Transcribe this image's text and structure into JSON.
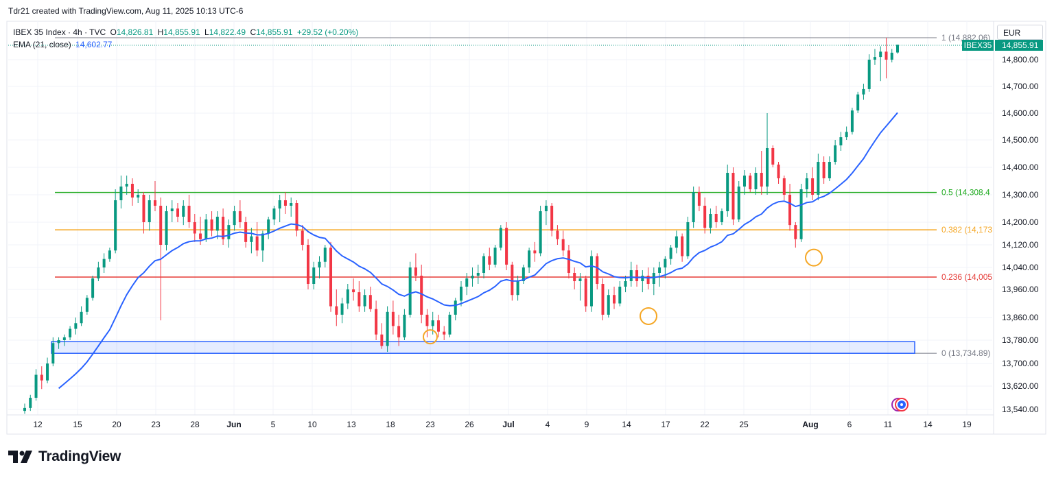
{
  "header": {
    "credit": "Tdr21 created with TradingView.com, Aug 11, 2025 10:13 UTC-6"
  },
  "legend": {
    "instrument": "IBEX 35 Index · 4h · TVC",
    "o_label": "O",
    "o_value": "14,826.81",
    "h_label": "H",
    "h_value": "14,855.91",
    "l_label": "L",
    "l_value": "14,822.49",
    "c_label": "C",
    "c_value": "14,855.91",
    "change": "+29.52 (+0.20%)",
    "ema_label": "EMA (21, close)",
    "ema_value": "14,602.77"
  },
  "currency": "EUR",
  "footer": {
    "brand": "TradingView"
  },
  "colors": {
    "up": "#089981",
    "down": "#f23645",
    "ema": "#2962ff",
    "fib_05": "#22ab22",
    "fib_0382": "#f5a623",
    "fib_0236": "#e53935",
    "fib_1": "#787b86",
    "box": "#2962ff",
    "circle": "#f5a623"
  },
  "chart_data": {
    "type": "candlestick",
    "price_axis": {
      "ylim": [
        13500,
        14900
      ],
      "ticks": [
        "14,800.00",
        "14,700.00",
        "14,600.00",
        "14,500.00",
        "14,400.00",
        "14,300.00",
        "14,200.00",
        "14,120.00",
        "14,040.00",
        "13,960.00",
        "13,860.00",
        "13,780.00",
        "13,700.00",
        "13,620.00",
        "13,540.00"
      ]
    },
    "time_axis": {
      "ticks": [
        "12",
        "15",
        "20",
        "23",
        "28",
        "Jun",
        "5",
        "10",
        "13",
        "18",
        "23",
        "26",
        "Jul",
        "4",
        "9",
        "14",
        "17",
        "22",
        "25",
        "Aug",
        "6",
        "11",
        "14",
        "19"
      ]
    },
    "last_price": {
      "symbol": "IBEX35",
      "value": "14,855.91"
    },
    "fib_levels": [
      {
        "level": "1",
        "label": "1 (14,882.06)",
        "price": 14882.06,
        "color": "#787b86"
      },
      {
        "level": "0.5",
        "label": "0.5 (14,308.4",
        "price": 14308.4,
        "color": "#22ab22"
      },
      {
        "level": "0.382",
        "label": "0.382 (14,173",
        "price": 14173,
        "color": "#f5a623"
      },
      {
        "level": "0.236",
        "label": "0.236 (14,005",
        "price": 14005,
        "color": "#e53935"
      },
      {
        "level": "0",
        "label": "0 (13,734.89)",
        "price": 13734.89,
        "color": "#787b86"
      }
    ],
    "support_zone": {
      "top": 13775,
      "bottom": 13734.89
    },
    "highlight_circles": [
      {
        "price": 13735
      },
      {
        "price": 13865
      },
      {
        "price": 14075
      }
    ],
    "candles": [
      [
        13535,
        13560,
        13525,
        13545
      ],
      [
        13545,
        13590,
        13535,
        13580
      ],
      [
        13580,
        13680,
        13570,
        13660
      ],
      [
        13660,
        13690,
        13610,
        13640
      ],
      [
        13640,
        13720,
        13630,
        13700
      ],
      [
        13700,
        13790,
        13690,
        13770
      ],
      [
        13770,
        13790,
        13750,
        13780
      ],
      [
        13780,
        13800,
        13760,
        13790
      ],
      [
        13790,
        13830,
        13780,
        13820
      ],
      [
        13820,
        13860,
        13800,
        13840
      ],
      [
        13840,
        13900,
        13830,
        13880
      ],
      [
        13880,
        13940,
        13870,
        13930
      ],
      [
        13930,
        14010,
        13920,
        14000
      ],
      [
        14000,
        14060,
        13990,
        14040
      ],
      [
        14040,
        14090,
        14020,
        14070
      ],
      [
        14070,
        14110,
        14060,
        14100
      ],
      [
        14100,
        14320,
        14090,
        14280
      ],
      [
        14280,
        14370,
        14250,
        14330
      ],
      [
        14330,
        14370,
        14300,
        14340
      ],
      [
        14340,
        14360,
        14260,
        14290
      ],
      [
        14290,
        14320,
        14270,
        14300
      ],
      [
        14300,
        14310,
        14160,
        14200
      ],
      [
        14200,
        14300,
        14170,
        14280
      ],
      [
        14280,
        14350,
        14240,
        14260
      ],
      [
        14260,
        14290,
        13850,
        14120
      ],
      [
        14120,
        14260,
        14100,
        14240
      ],
      [
        14240,
        14280,
        14200,
        14250
      ],
      [
        14250,
        14270,
        14200,
        14220
      ],
      [
        14220,
        14280,
        14190,
        14260
      ],
      [
        14260,
        14300,
        14180,
        14200
      ],
      [
        14200,
        14230,
        14130,
        14160
      ],
      [
        14160,
        14220,
        14120,
        14140
      ],
      [
        14140,
        14230,
        14130,
        14210
      ],
      [
        14210,
        14240,
        14150,
        14170
      ],
      [
        14170,
        14240,
        14140,
        14220
      ],
      [
        14220,
        14250,
        14120,
        14140
      ],
      [
        14140,
        14210,
        14110,
        14190
      ],
      [
        14190,
        14260,
        14170,
        14240
      ],
      [
        14240,
        14280,
        14180,
        14200
      ],
      [
        14200,
        14220,
        14110,
        14130
      ],
      [
        14130,
        14180,
        14090,
        14150
      ],
      [
        14150,
        14200,
        14080,
        14100
      ],
      [
        14100,
        14170,
        14060,
        14160
      ],
      [
        14160,
        14220,
        14140,
        14210
      ],
      [
        14210,
        14260,
        14190,
        14250
      ],
      [
        14250,
        14300,
        14200,
        14280
      ],
      [
        14280,
        14310,
        14230,
        14260
      ],
      [
        14260,
        14290,
        14220,
        14270
      ],
      [
        14270,
        14280,
        14150,
        14170
      ],
      [
        14170,
        14190,
        14100,
        14120
      ],
      [
        14120,
        14140,
        13960,
        13980
      ],
      [
        13980,
        14060,
        13960,
        14040
      ],
      [
        14040,
        14080,
        14000,
        14060
      ],
      [
        14060,
        14120,
        14040,
        14110
      ],
      [
        14110,
        14130,
        13880,
        13900
      ],
      [
        13900,
        13960,
        13830,
        13870
      ],
      [
        13870,
        13930,
        13840,
        13910
      ],
      [
        13910,
        13980,
        13890,
        13960
      ],
      [
        13960,
        14000,
        13920,
        13950
      ],
      [
        13950,
        13990,
        13880,
        13900
      ],
      [
        13900,
        13960,
        13880,
        13940
      ],
      [
        13940,
        13970,
        13880,
        13890
      ],
      [
        13890,
        13920,
        13780,
        13800
      ],
      [
        13800,
        13840,
        13750,
        13760
      ],
      [
        13760,
        13900,
        13740,
        13880
      ],
      [
        13880,
        13920,
        13800,
        13830
      ],
      [
        13830,
        13870,
        13760,
        13790
      ],
      [
        13790,
        13890,
        13780,
        13870
      ],
      [
        13870,
        14060,
        13860,
        14040
      ],
      [
        14040,
        14090,
        13990,
        14010
      ],
      [
        14010,
        14050,
        13840,
        13870
      ],
      [
        13870,
        13890,
        13790,
        13830
      ],
      [
        13830,
        13880,
        13800,
        13850
      ],
      [
        13850,
        13870,
        13790,
        13810
      ],
      [
        13810,
        13830,
        13780,
        13800
      ],
      [
        13800,
        13880,
        13790,
        13870
      ],
      [
        13870,
        13930,
        13850,
        13920
      ],
      [
        13920,
        13990,
        13900,
        13970
      ],
      [
        13970,
        14020,
        13940,
        14000
      ],
      [
        14000,
        14040,
        13970,
        14010
      ],
      [
        14010,
        14050,
        13980,
        14020
      ],
      [
        14020,
        14090,
        14000,
        14080
      ],
      [
        14080,
        14110,
        14030,
        14050
      ],
      [
        14050,
        14120,
        14040,
        14110
      ],
      [
        14110,
        14190,
        14100,
        14180
      ],
      [
        14180,
        14200,
        14030,
        14050
      ],
      [
        14050,
        14060,
        13920,
        13940
      ],
      [
        13940,
        14010,
        13920,
        13990
      ],
      [
        13990,
        14050,
        13980,
        14040
      ],
      [
        14040,
        14110,
        14020,
        14100
      ],
      [
        14100,
        14130,
        14060,
        14090
      ],
      [
        14090,
        14260,
        14080,
        14240
      ],
      [
        14240,
        14280,
        14190,
        14260
      ],
      [
        14260,
        14270,
        14150,
        14170
      ],
      [
        14170,
        14190,
        14120,
        14140
      ],
      [
        14140,
        14170,
        14080,
        14100
      ],
      [
        14100,
        14120,
        14000,
        14020
      ],
      [
        14020,
        14040,
        13960,
        13990
      ],
      [
        13990,
        14020,
        13920,
        14000
      ],
      [
        14000,
        14010,
        13880,
        13900
      ],
      [
        13900,
        14100,
        13880,
        14080
      ],
      [
        14080,
        14090,
        13960,
        13980
      ],
      [
        13980,
        14000,
        13850,
        13870
      ],
      [
        13870,
        13960,
        13860,
        13940
      ],
      [
        13940,
        13970,
        13890,
        13910
      ],
      [
        13910,
        13990,
        13900,
        13970
      ],
      [
        13970,
        14010,
        13950,
        13990
      ],
      [
        13990,
        14060,
        13970,
        14030
      ],
      [
        14030,
        14050,
        13970,
        13990
      ],
      [
        13990,
        14030,
        13950,
        14010
      ],
      [
        14010,
        14040,
        13960,
        13980
      ],
      [
        13980,
        14040,
        13940,
        14020
      ],
      [
        14020,
        14060,
        13970,
        14040
      ],
      [
        14040,
        14080,
        14000,
        14070
      ],
      [
        14070,
        14120,
        14050,
        14110
      ],
      [
        14110,
        14170,
        14090,
        14150
      ],
      [
        14150,
        14160,
        14060,
        14080
      ],
      [
        14080,
        14220,
        14070,
        14200
      ],
      [
        14200,
        14330,
        14180,
        14310
      ],
      [
        14310,
        14330,
        14240,
        14260
      ],
      [
        14260,
        14290,
        14160,
        14180
      ],
      [
        14180,
        14250,
        14160,
        14230
      ],
      [
        14230,
        14260,
        14180,
        14200
      ],
      [
        14200,
        14250,
        14190,
        14240
      ],
      [
        14240,
        14410,
        14220,
        14380
      ],
      [
        14380,
        14400,
        14190,
        14210
      ],
      [
        14210,
        14350,
        14200,
        14330
      ],
      [
        14330,
        14390,
        14300,
        14370
      ],
      [
        14370,
        14380,
        14310,
        14320
      ],
      [
        14320,
        14400,
        14300,
        14380
      ],
      [
        14380,
        14460,
        14300,
        14330
      ],
      [
        14330,
        14600,
        14300,
        14470
      ],
      [
        14470,
        14480,
        14400,
        14410
      ],
      [
        14410,
        14420,
        14340,
        14360
      ],
      [
        14360,
        14370,
        14280,
        14300
      ],
      [
        14300,
        14340,
        14170,
        14190
      ],
      [
        14190,
        14200,
        14110,
        14140
      ],
      [
        14140,
        14340,
        14130,
        14320
      ],
      [
        14320,
        14380,
        14290,
        14360
      ],
      [
        14360,
        14400,
        14280,
        14300
      ],
      [
        14300,
        14450,
        14280,
        14420
      ],
      [
        14420,
        14440,
        14340,
        14360
      ],
      [
        14360,
        14440,
        14350,
        14420
      ],
      [
        14420,
        14500,
        14410,
        14480
      ],
      [
        14480,
        14530,
        14460,
        14510
      ],
      [
        14510,
        14550,
        14500,
        14530
      ],
      [
        14530,
        14620,
        14520,
        14610
      ],
      [
        14610,
        14680,
        14600,
        14670
      ],
      [
        14670,
        14710,
        14650,
        14690
      ],
      [
        14690,
        14820,
        14680,
        14800
      ],
      [
        14800,
        14840,
        14780,
        14810
      ],
      [
        14810,
        14850,
        14720,
        14830
      ],
      [
        14830,
        14882,
        14730,
        14800
      ],
      [
        14800,
        14840,
        14790,
        14826
      ],
      [
        14826.81,
        14855.91,
        14822.49,
        14855.91
      ]
    ]
  }
}
